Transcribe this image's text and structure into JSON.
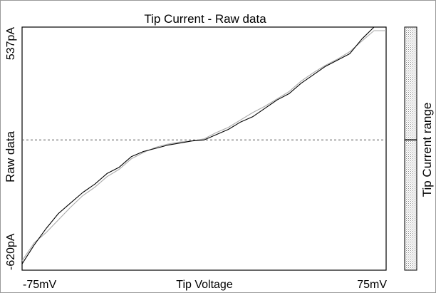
{
  "chart_data": {
    "type": "line",
    "title": "Tip Current - Raw data",
    "xlabel": "Tip Voltage",
    "ylabel": "Raw data",
    "x_unit": "mV",
    "y_unit": "pA",
    "xlim": [
      -75,
      75
    ],
    "ylim": [
      -620,
      537
    ],
    "x_tick_labels": [
      "-75mV",
      "75mV"
    ],
    "y_tick_labels": [
      "537pA",
      "-620pA"
    ],
    "zero_line": {
      "y": 0,
      "style": "dashed"
    },
    "grid": false,
    "colorbar": {
      "label": "Tip Current range",
      "marker_value": 0
    },
    "series": [
      {
        "color": "#000000",
        "x": [
          -75,
          -70,
          -65,
          -60,
          -55,
          -50,
          -45,
          -40,
          -35,
          -30,
          -25,
          -20,
          -15,
          -10,
          -5,
          0,
          5,
          10,
          15,
          20,
          25,
          30,
          35,
          40,
          45,
          50,
          55,
          60,
          65,
          70,
          75
        ],
        "y": [
          -590,
          -500,
          -420,
          -350,
          -300,
          -250,
          -210,
          -160,
          -130,
          -80,
          -55,
          -40,
          -25,
          -15,
          -5,
          0,
          25,
          50,
          85,
          110,
          150,
          190,
          220,
          270,
          310,
          350,
          380,
          410,
          480,
          537,
          537
        ]
      },
      {
        "color": "#aaaaaa",
        "x": [
          -75,
          -70,
          -65,
          -60,
          -55,
          -50,
          -45,
          -40,
          -35,
          -30,
          -25,
          -20,
          -15,
          -10,
          -5,
          0,
          5,
          10,
          15,
          20,
          25,
          30,
          35,
          40,
          45,
          50,
          55,
          60,
          65,
          70,
          75
        ],
        "y": [
          -575,
          -490,
          -440,
          -380,
          -320,
          -265,
          -225,
          -175,
          -140,
          -90,
          -60,
          -35,
          -20,
          -10,
          -5,
          5,
          35,
          60,
          95,
          130,
          160,
          195,
          230,
          280,
          320,
          355,
          385,
          420,
          470,
          520,
          520
        ]
      }
    ]
  }
}
